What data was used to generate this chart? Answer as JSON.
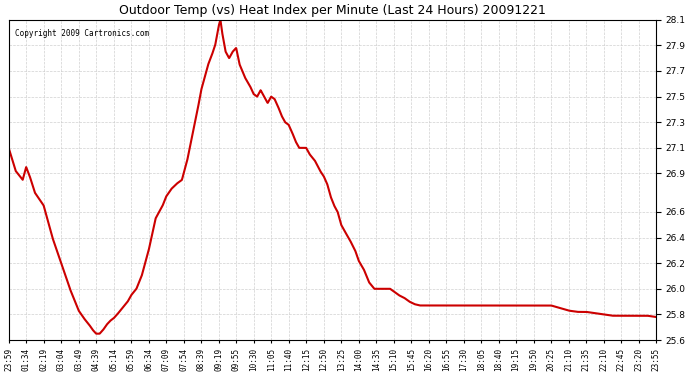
{
  "title": "Outdoor Temp (vs) Heat Index per Minute (Last 24 Hours) 20091221",
  "copyright": "Copyright 2009 Cartronics.com",
  "line_color": "#cc0000",
  "line_width": 1.5,
  "bg_color": "#ffffff",
  "grid_color": "#cccccc",
  "ylim": [
    25.6,
    28.1
  ],
  "yticks": [
    25.6,
    25.8,
    26.0,
    26.2,
    26.4,
    26.6,
    26.9,
    27.1,
    27.3,
    27.5,
    27.7,
    27.9,
    28.1
  ],
  "xtick_labels": [
    "23:59",
    "01:34",
    "02:19",
    "03:04",
    "03:49",
    "04:39",
    "05:14",
    "05:59",
    "06:34",
    "07:09",
    "07:54",
    "08:39",
    "09:19",
    "09:55",
    "10:30",
    "11:05",
    "11:40",
    "12:15",
    "12:50",
    "13:25",
    "14:00",
    "14:35",
    "15:10",
    "15:45",
    "16:20",
    "16:55",
    "17:30",
    "18:05",
    "18:40",
    "19:15",
    "19:50",
    "20:25",
    "21:10",
    "21:35",
    "22:10",
    "22:45",
    "23:20",
    "23:55"
  ],
  "key_t": [
    0.0,
    0.4,
    0.8,
    1.0,
    1.2,
    1.5,
    2.0,
    2.5,
    3.0,
    3.5,
    4.0,
    4.3,
    4.6,
    4.8,
    5.0,
    5.2,
    5.4,
    5.6,
    5.8,
    6.0,
    6.2,
    6.5,
    6.8,
    7.0,
    7.3,
    7.6,
    8.0,
    8.4,
    8.8,
    9.0,
    9.3,
    9.6,
    9.9,
    10.2,
    10.5,
    10.8,
    11.0,
    11.2,
    11.4,
    11.6,
    11.8,
    12.0,
    12.1,
    12.2,
    12.4,
    12.6,
    12.8,
    13.0,
    13.2,
    13.5,
    13.8,
    14.0,
    14.2,
    14.4,
    14.6,
    14.8,
    15.0,
    15.2,
    15.4,
    15.6,
    15.8,
    16.0,
    16.2,
    16.4,
    16.6,
    16.8,
    17.0,
    17.2,
    17.5,
    17.8,
    18.0,
    18.2,
    18.4,
    18.6,
    18.8,
    19.0,
    19.2,
    19.5,
    19.8,
    20.0,
    20.3,
    20.6,
    20.9,
    21.2,
    21.5,
    21.8,
    22.0,
    22.3,
    22.6,
    22.9,
    23.2,
    23.5,
    24.0,
    24.5,
    25.0,
    25.5,
    26.0,
    26.5,
    27.0,
    27.5,
    28.0,
    28.5,
    29.0,
    29.5,
    30.0,
    30.5,
    31.0,
    31.5,
    32.0,
    32.5,
    33.0,
    33.5,
    34.0,
    34.5,
    35.0,
    35.5,
    36.0,
    36.5,
    37.0
  ],
  "key_v": [
    27.1,
    26.92,
    26.85,
    26.95,
    26.88,
    26.75,
    26.65,
    26.4,
    26.2,
    26.0,
    25.83,
    25.77,
    25.72,
    25.68,
    25.65,
    25.65,
    25.68,
    25.72,
    25.75,
    25.77,
    25.8,
    25.85,
    25.9,
    25.95,
    26.0,
    26.1,
    26.3,
    26.55,
    26.65,
    26.72,
    26.78,
    26.82,
    26.85,
    27.0,
    27.2,
    27.4,
    27.55,
    27.65,
    27.75,
    27.82,
    27.9,
    28.05,
    28.1,
    28.0,
    27.85,
    27.8,
    27.85,
    27.88,
    27.75,
    27.65,
    27.58,
    27.52,
    27.5,
    27.55,
    27.5,
    27.45,
    27.5,
    27.48,
    27.42,
    27.35,
    27.3,
    27.28,
    27.22,
    27.15,
    27.1,
    27.1,
    27.1,
    27.05,
    27.0,
    26.92,
    26.88,
    26.82,
    26.72,
    26.65,
    26.6,
    26.5,
    26.45,
    26.38,
    26.3,
    26.22,
    26.15,
    26.05,
    26.0,
    26.0,
    26.0,
    26.0,
    25.98,
    25.95,
    25.93,
    25.9,
    25.88,
    25.87,
    25.87,
    25.87,
    25.87,
    25.87,
    25.87,
    25.87,
    25.87,
    25.87,
    25.87,
    25.87,
    25.87,
    25.87,
    25.87,
    25.87,
    25.87,
    25.85,
    25.83,
    25.82,
    25.82,
    25.81,
    25.8,
    25.79,
    25.79,
    25.79,
    25.79,
    25.79,
    25.78
  ]
}
